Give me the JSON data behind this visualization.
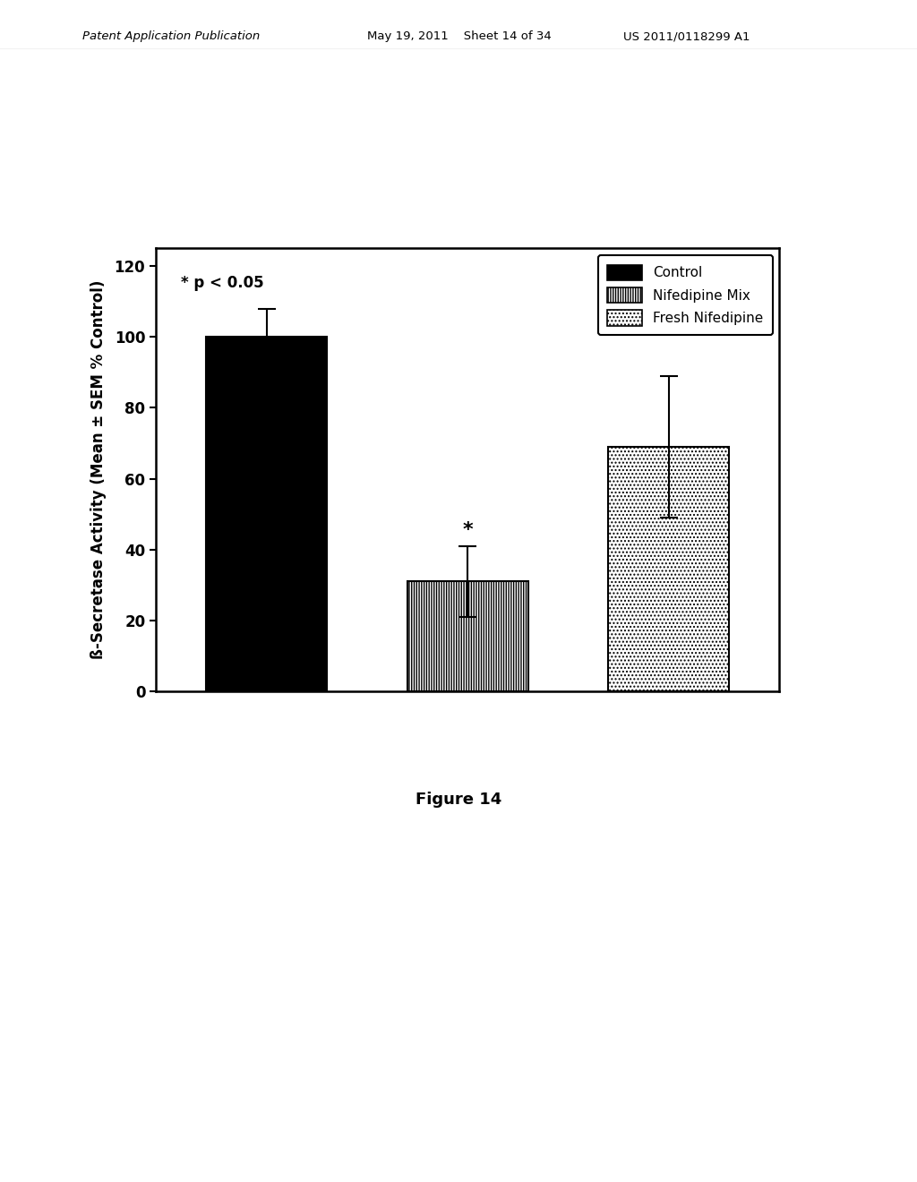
{
  "categories": [
    "Control",
    "Nifedipine Mix",
    "Fresh Nifedipine"
  ],
  "values": [
    100,
    31,
    69
  ],
  "errors": [
    8,
    10,
    20
  ],
  "bar_colors": [
    "black",
    "white",
    "white"
  ],
  "bar_hatches": [
    null,
    "||||||",
    "...."
  ],
  "bar_edgecolors": [
    "black",
    "black",
    "black"
  ],
  "ylabel": "ß-Secretase Activity (Mean ± SEM % Control)",
  "ylim": [
    0,
    125
  ],
  "yticks": [
    0,
    20,
    40,
    60,
    80,
    100,
    120
  ],
  "annotation_text": "* p < 0.05",
  "legend_labels": [
    "Control",
    "Nifedipine Mix",
    "Fresh Nifedipine"
  ],
  "legend_hatches": [
    null,
    "||||||",
    "...."
  ],
  "legend_colors": [
    "black",
    "white",
    "white"
  ],
  "figure_caption": "Figure 14",
  "header_left": "Patent Application Publication",
  "header_mid": "May 19, 2011    Sheet 14 of 34",
  "header_right": "US 2011/0118299 A1",
  "background_color": "white",
  "bar_width": 0.6
}
